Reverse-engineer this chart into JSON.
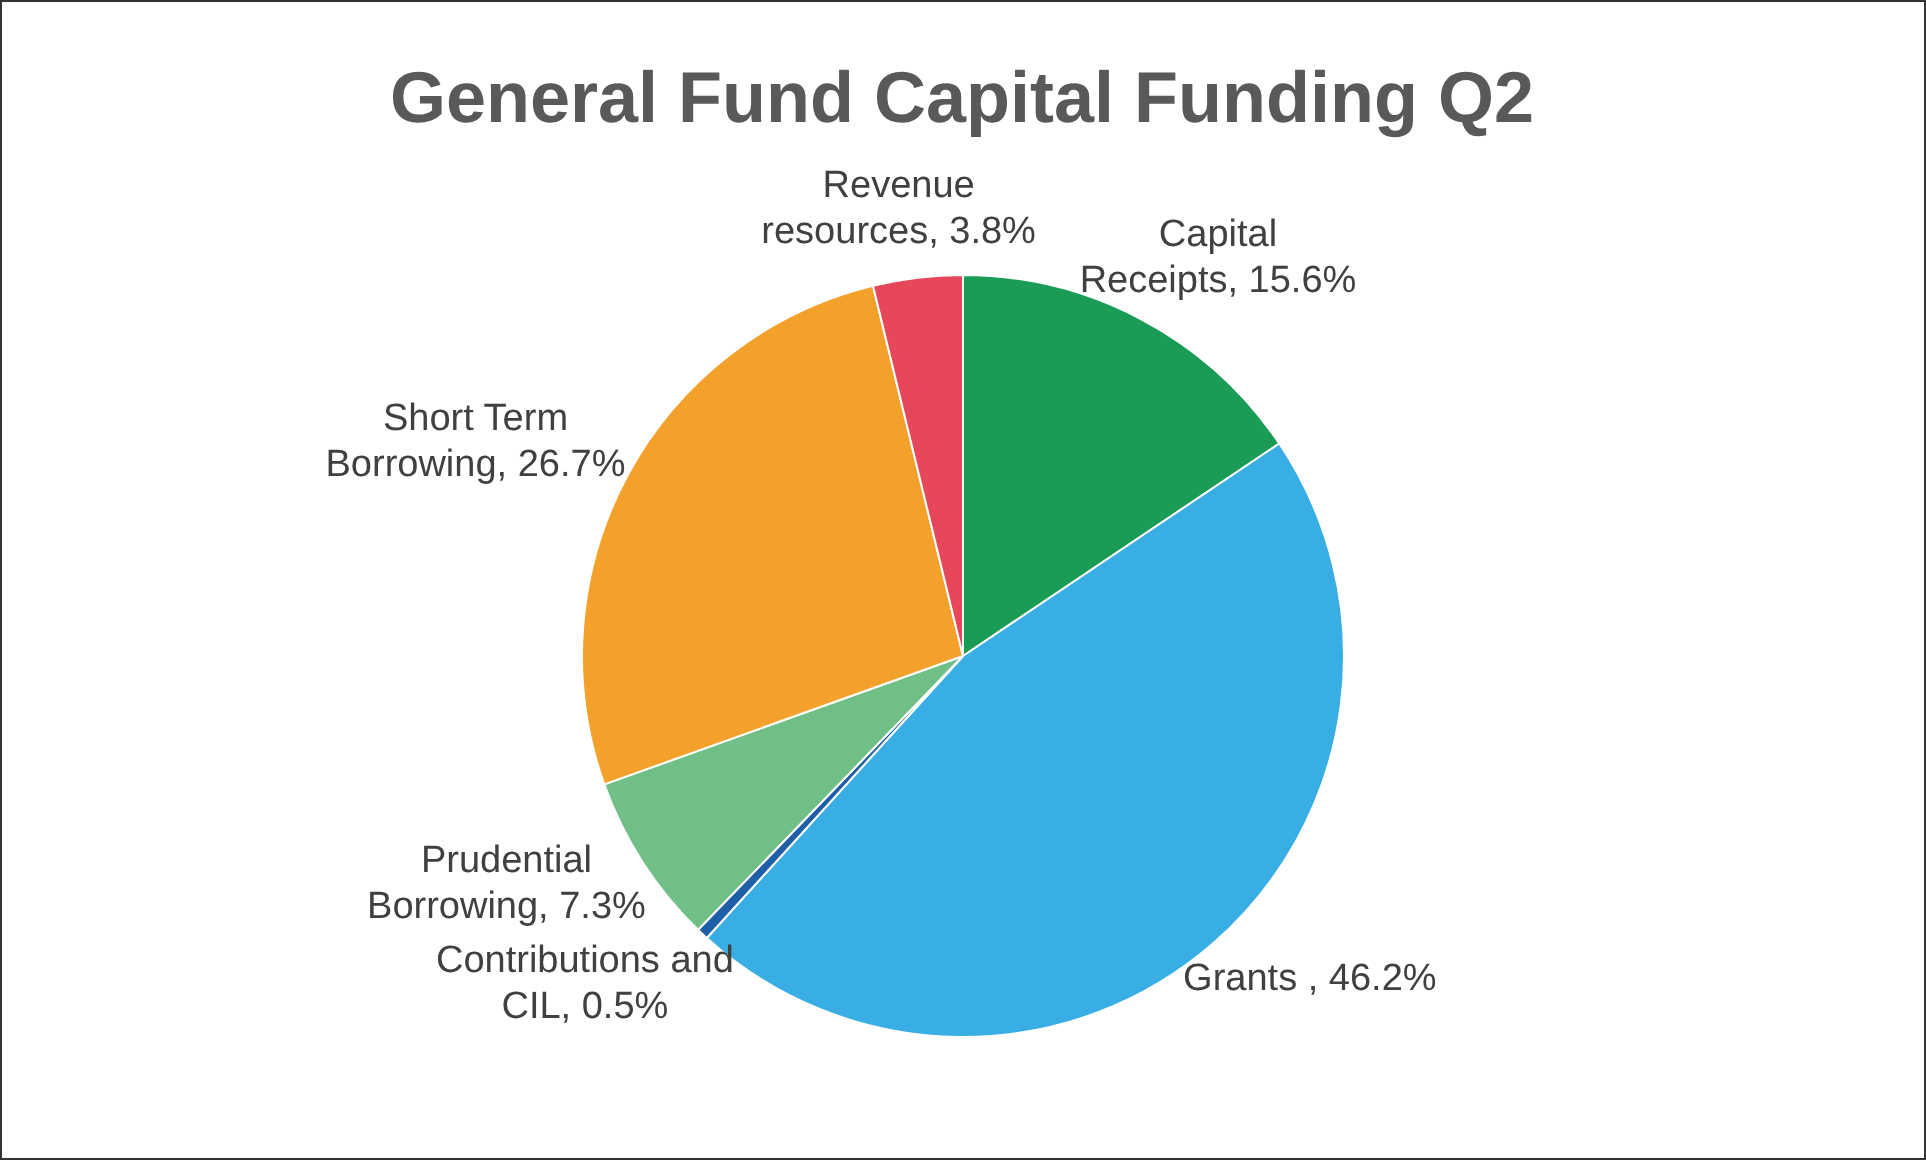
{
  "chart_data": {
    "type": "pie",
    "title": "General Fund Capital Funding Q2",
    "categories": [
      "Capital Receipts",
      "Grants ",
      "Contributions and CIL",
      "Prudential Borrowing",
      "Short Term Borrowing",
      "Revenue resources"
    ],
    "values": [
      15.6,
      46.2,
      0.5,
      7.3,
      26.7,
      3.8
    ],
    "colors": [
      "#1a9c57",
      "#38aee4",
      "#1f5fa8",
      "#6fbf87",
      "#f4a12c",
      "#e6475a"
    ],
    "value_labels": [
      "15.6%",
      "46.2%",
      "0.5%",
      "7.3%",
      "26.7%",
      "3.8%"
    ],
    "legend": false
  }
}
